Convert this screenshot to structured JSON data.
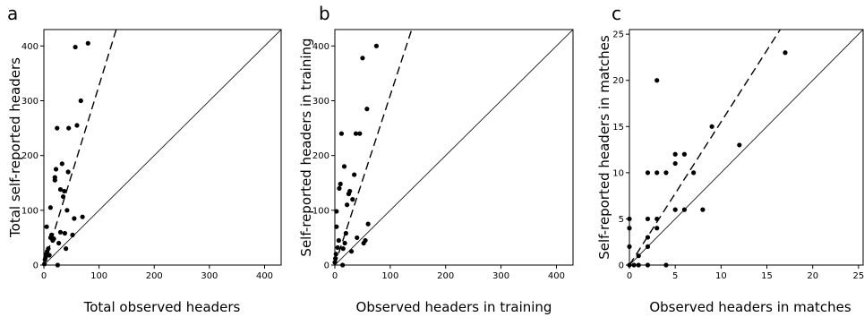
{
  "chart_data": [
    {
      "type": "scatter",
      "panel_label": "a",
      "xlabel": "Total observed headers",
      "ylabel": "Total self-reported headers",
      "xlim": [
        0,
        430
      ],
      "ylim": [
        0,
        430
      ],
      "xticks": [
        0,
        100,
        200,
        300,
        400
      ],
      "yticks": [
        0,
        100,
        200,
        300,
        400
      ],
      "identity_line": true,
      "fit_slope": 3.28,
      "points": [
        [
          1,
          2
        ],
        [
          2,
          10
        ],
        [
          3,
          14
        ],
        [
          4,
          20
        ],
        [
          5,
          70
        ],
        [
          6,
          25
        ],
        [
          8,
          30
        ],
        [
          10,
          18
        ],
        [
          12,
          50
        ],
        [
          12,
          105
        ],
        [
          14,
          55
        ],
        [
          16,
          45
        ],
        [
          18,
          48
        ],
        [
          20,
          155
        ],
        [
          20,
          160
        ],
        [
          22,
          175
        ],
        [
          24,
          250
        ],
        [
          25,
          0
        ],
        [
          27,
          40
        ],
        [
          30,
          60
        ],
        [
          30,
          138
        ],
        [
          33,
          185
        ],
        [
          35,
          125
        ],
        [
          37,
          135
        ],
        [
          38,
          58
        ],
        [
          40,
          30
        ],
        [
          42,
          100
        ],
        [
          44,
          170
        ],
        [
          45,
          250
        ],
        [
          52,
          55
        ],
        [
          55,
          85
        ],
        [
          57,
          398
        ],
        [
          60,
          255
        ],
        [
          67,
          300
        ],
        [
          70,
          88
        ],
        [
          80,
          405
        ]
      ]
    },
    {
      "type": "scatter",
      "panel_label": "b",
      "xlabel": "Observed headers in training",
      "ylabel": "Self-reported headers in training",
      "xlim": [
        0,
        430
      ],
      "ylim": [
        0,
        430
      ],
      "xticks": [
        0,
        100,
        200,
        300,
        400
      ],
      "yticks": [
        0,
        100,
        200,
        300,
        400
      ],
      "identity_line": true,
      "fit_slope": 3.1,
      "points": [
        [
          0,
          5
        ],
        [
          1,
          12
        ],
        [
          2,
          20
        ],
        [
          3,
          70
        ],
        [
          3,
          98
        ],
        [
          5,
          32
        ],
        [
          7,
          45
        ],
        [
          8,
          140
        ],
        [
          10,
          148
        ],
        [
          12,
          240
        ],
        [
          14,
          0
        ],
        [
          15,
          30
        ],
        [
          17,
          180
        ],
        [
          18,
          40
        ],
        [
          20,
          58
        ],
        [
          22,
          110
        ],
        [
          25,
          130
        ],
        [
          27,
          135
        ],
        [
          30,
          25
        ],
        [
          32,
          120
        ],
        [
          35,
          165
        ],
        [
          38,
          240
        ],
        [
          40,
          50
        ],
        [
          45,
          240
        ],
        [
          50,
          378
        ],
        [
          52,
          40
        ],
        [
          55,
          45
        ],
        [
          58,
          285
        ],
        [
          60,
          75
        ],
        [
          75,
          400
        ]
      ]
    },
    {
      "type": "scatter",
      "panel_label": "c",
      "xlabel": "Observed headers in matches",
      "ylabel": "Self-reported headers in matches",
      "xlim": [
        0,
        25.5
      ],
      "ylim": [
        0,
        25.5
      ],
      "xticks": [
        0,
        5,
        10,
        15,
        20,
        25
      ],
      "yticks": [
        0,
        5,
        10,
        15,
        20,
        25
      ],
      "identity_line": true,
      "fit_slope": 1.55,
      "points": [
        [
          0,
          0
        ],
        [
          0,
          2
        ],
        [
          0,
          4
        ],
        [
          0,
          5
        ],
        [
          0.5,
          0
        ],
        [
          1,
          1
        ],
        [
          1,
          0
        ],
        [
          2,
          0
        ],
        [
          2,
          2
        ],
        [
          2,
          3
        ],
        [
          2,
          5
        ],
        [
          2,
          10
        ],
        [
          3,
          4
        ],
        [
          3,
          5
        ],
        [
          3,
          10
        ],
        [
          3,
          20
        ],
        [
          4,
          0
        ],
        [
          4,
          10
        ],
        [
          5,
          6
        ],
        [
          5,
          11
        ],
        [
          5,
          12
        ],
        [
          6,
          6
        ],
        [
          6,
          12
        ],
        [
          7,
          10
        ],
        [
          8,
          6
        ],
        [
          9,
          15
        ],
        [
          12,
          13
        ],
        [
          17,
          23
        ]
      ]
    }
  ]
}
